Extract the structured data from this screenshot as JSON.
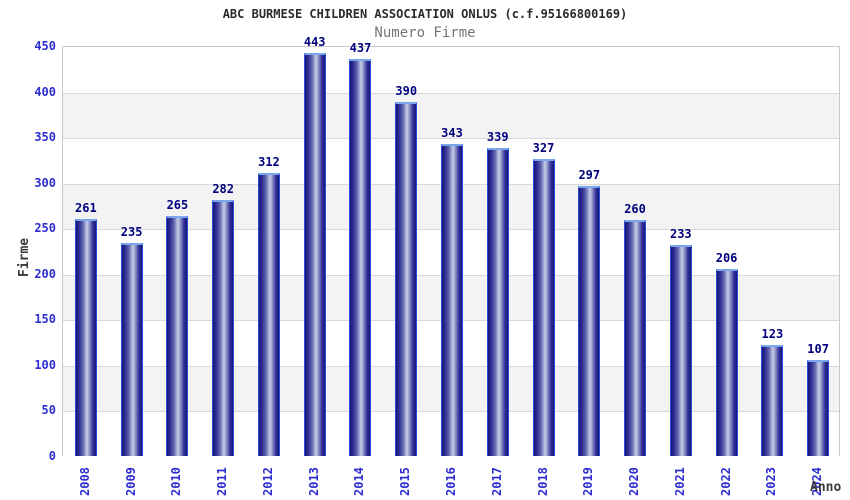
{
  "chart_data": {
    "type": "bar",
    "title": "ABC BURMESE CHILDREN ASSOCIATION ONLUS (c.f.95166800169)",
    "subtitle": "Numero Firme",
    "xlabel": "Anno",
    "ylabel": "Firme",
    "categories": [
      "2008",
      "2009",
      "2010",
      "2011",
      "2012",
      "2013",
      "2014",
      "2015",
      "2016",
      "2017",
      "2018",
      "2019",
      "2020",
      "2021",
      "2022",
      "2023",
      "2024"
    ],
    "values": [
      261,
      235,
      265,
      282,
      312,
      443,
      437,
      390,
      343,
      339,
      327,
      297,
      260,
      233,
      206,
      123,
      107
    ],
    "ylim": [
      0,
      450
    ],
    "ytick_step": 50,
    "yticks": [
      0,
      50,
      100,
      150,
      200,
      250,
      300,
      350,
      400,
      450
    ],
    "grid": true,
    "legend": "none",
    "band_fill": "alternating"
  },
  "colors": {
    "background": "#ffffff",
    "band_gray": "#f3f3f3",
    "gridline": "#d9d9d9",
    "plot_border": "#c9c9c9",
    "tick_blue": "#2d2dd0",
    "value_label_navy": "#00007f",
    "title_text": "#2b2b2b",
    "subtitle_text": "#757575",
    "axis_title_text": "#3a3a3a",
    "bar_dark": "#17177a",
    "bar_highlight": "#c9cde8",
    "bar_side_border": "#2a4fd6",
    "bar_top_cap": "#7aa6ec"
  }
}
